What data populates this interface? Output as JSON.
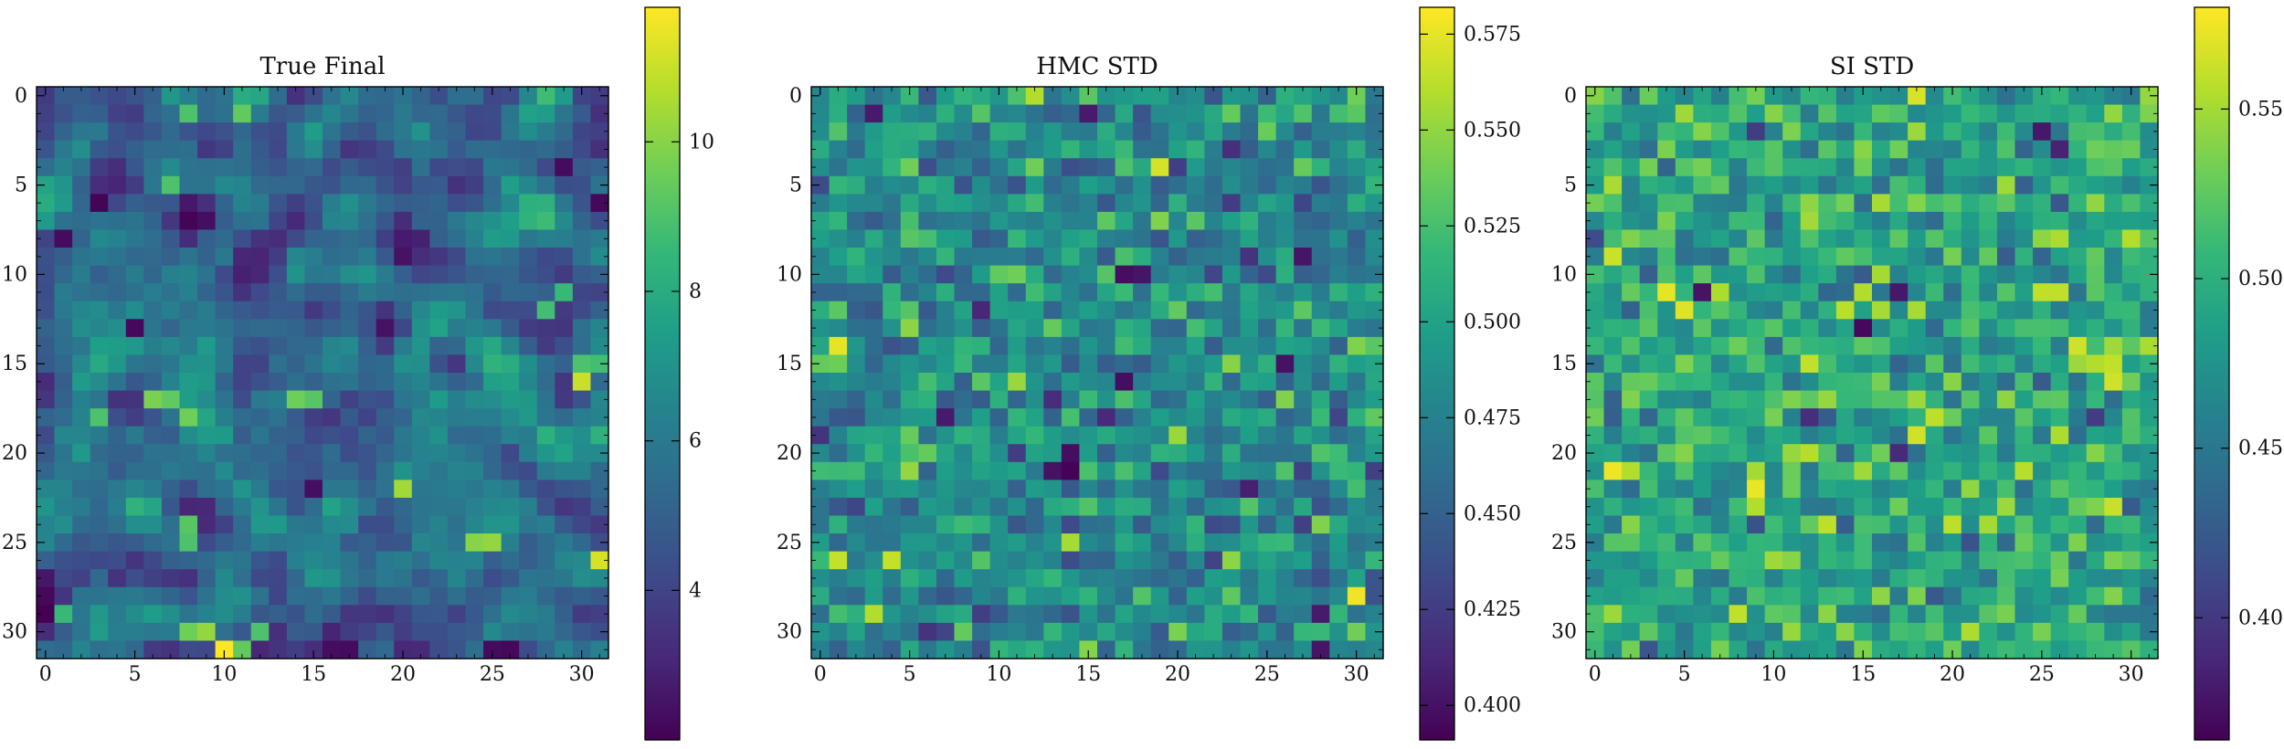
{
  "chart_data": [
    {
      "type": "heatmap",
      "title": "True Final",
      "grid_shape": [
        32,
        32
      ],
      "colormap": "viridis",
      "x_ticks": [
        0,
        5,
        10,
        15,
        20,
        25,
        30
      ],
      "y_ticks": [
        0,
        5,
        10,
        15,
        20,
        25,
        30
      ],
      "colorbar": {
        "range": [
          2.0,
          11.8
        ],
        "ticks": [
          4,
          6,
          8,
          10
        ]
      },
      "value_stats": {
        "mean": 5.2,
        "spread": 1.6,
        "min": 2.0,
        "max": 11.8
      },
      "hotspots": [
        [
          31,
          10,
          11.8
        ],
        [
          26,
          31,
          11.2
        ],
        [
          16,
          30,
          11.0
        ],
        [
          22,
          20,
          10.4
        ],
        [
          25,
          24,
          10.0
        ],
        [
          25,
          25,
          10.2
        ],
        [
          17,
          6,
          9.8
        ],
        [
          17,
          7,
          9.4
        ],
        [
          18,
          8,
          9.6
        ],
        [
          18,
          3,
          9.0
        ],
        [
          30,
          9,
          10.2
        ],
        [
          30,
          8,
          9.6
        ],
        [
          31,
          11,
          9.4
        ],
        [
          17,
          14,
          9.6
        ],
        [
          17,
          15,
          9.2
        ],
        [
          24,
          8,
          9.2
        ],
        [
          25,
          8,
          9.0
        ],
        [
          1,
          8,
          9.0
        ],
        [
          1,
          11,
          9.4
        ],
        [
          5,
          7,
          9.0
        ],
        [
          15,
          30,
          9.0
        ],
        [
          15,
          31,
          8.8
        ],
        [
          12,
          28,
          8.8
        ],
        [
          11,
          29,
          8.6
        ],
        [
          29,
          1,
          8.6
        ],
        [
          30,
          12,
          9.0
        ]
      ],
      "lowspots": [
        [
          6,
          3,
          2.1
        ],
        [
          8,
          1,
          2.3
        ],
        [
          13,
          5,
          2.2
        ],
        [
          22,
          15,
          2.4
        ],
        [
          31,
          25,
          2.3
        ],
        [
          4,
          29,
          2.3
        ],
        [
          6,
          31,
          2.2
        ],
        [
          31,
          26,
          2.2
        ],
        [
          27,
          0,
          2.6
        ]
      ]
    },
    {
      "type": "heatmap",
      "title": "HMC STD",
      "grid_shape": [
        32,
        32
      ],
      "colormap": "viridis",
      "x_ticks": [
        0,
        5,
        10,
        15,
        20,
        25,
        30
      ],
      "y_ticks": [
        0,
        5,
        10,
        15,
        20,
        25,
        30
      ],
      "colorbar": {
        "range": [
          0.391,
          0.582
        ],
        "ticks": [
          0.4,
          0.425,
          0.45,
          0.475,
          0.5,
          0.525,
          0.55,
          0.575
        ]
      },
      "value_stats": {
        "mean": 0.482,
        "spread": 0.026,
        "min": 0.391,
        "max": 0.582
      },
      "hotspots": [
        [
          14,
          1,
          0.575
        ],
        [
          4,
          19,
          0.57
        ],
        [
          0,
          12,
          0.56
        ],
        [
          28,
          30,
          0.578
        ],
        [
          26,
          1,
          0.565
        ],
        [
          26,
          4,
          0.565
        ],
        [
          16,
          11,
          0.552
        ],
        [
          7,
          19,
          0.545
        ],
        [
          13,
          5,
          0.548
        ],
        [
          17,
          26,
          0.545
        ],
        [
          4,
          12,
          0.54
        ],
        [
          14,
          30,
          0.545
        ],
        [
          4,
          5,
          0.54
        ],
        [
          12,
          20,
          0.535
        ]
      ],
      "lowspots": [
        [
          21,
          14,
          0.392
        ],
        [
          20,
          14,
          0.398
        ],
        [
          21,
          13,
          0.4
        ],
        [
          10,
          17,
          0.398
        ],
        [
          10,
          18,
          0.402
        ],
        [
          1,
          3,
          0.405
        ],
        [
          15,
          26,
          0.4
        ],
        [
          18,
          7,
          0.405
        ],
        [
          9,
          27,
          0.402
        ],
        [
          29,
          28,
          0.405
        ],
        [
          31,
          28,
          0.402
        ],
        [
          22,
          24,
          0.408
        ]
      ]
    },
    {
      "type": "heatmap",
      "title": "SI STD",
      "grid_shape": [
        32,
        32
      ],
      "colormap": "viridis",
      "x_ticks": [
        0,
        5,
        10,
        15,
        20,
        25,
        30
      ],
      "y_ticks": [
        0,
        5,
        10,
        15,
        20,
        25,
        30
      ],
      "colorbar": {
        "range": [
          0.364,
          0.58
        ],
        "ticks": [
          0.4,
          0.45,
          0.5,
          0.55
        ]
      },
      "value_stats": {
        "mean": 0.49,
        "spread": 0.03,
        "min": 0.364,
        "max": 0.58
      },
      "hotspots": [
        [
          21,
          1,
          0.575
        ],
        [
          12,
          5,
          0.57
        ],
        [
          29,
          8,
          0.56
        ],
        [
          16,
          29,
          0.565
        ],
        [
          15,
          28,
          0.555
        ],
        [
          15,
          29,
          0.56
        ],
        [
          11,
          15,
          0.555
        ],
        [
          21,
          9,
          0.55
        ],
        [
          24,
          22,
          0.55
        ],
        [
          26,
          10,
          0.548
        ],
        [
          0,
          31,
          0.545
        ],
        [
          5,
          23,
          0.548
        ],
        [
          14,
          29,
          0.548
        ]
      ],
      "lowspots": [
        [
          13,
          15,
          0.368
        ],
        [
          11,
          6,
          0.375
        ],
        [
          11,
          17,
          0.378
        ],
        [
          2,
          25,
          0.378
        ],
        [
          3,
          26,
          0.385
        ],
        [
          20,
          17,
          0.39
        ],
        [
          18,
          12,
          0.392
        ]
      ]
    }
  ]
}
